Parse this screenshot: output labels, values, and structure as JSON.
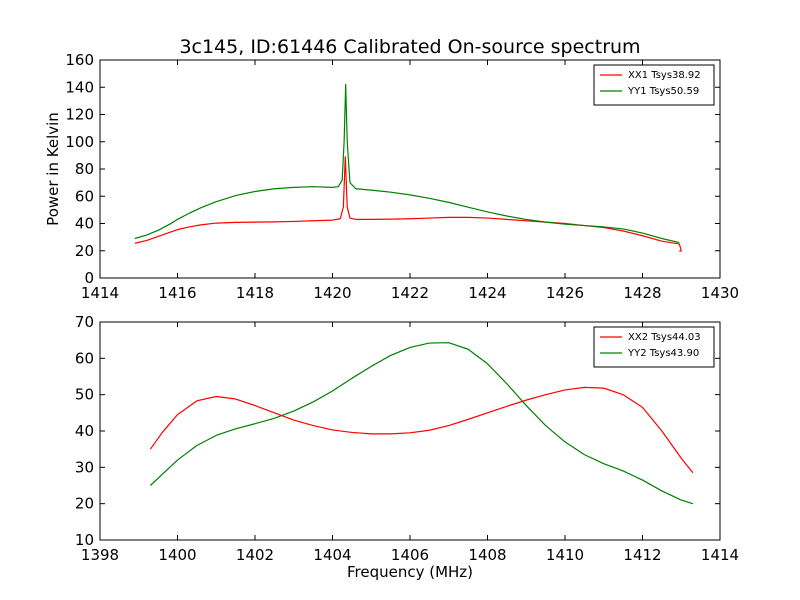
{
  "title": "3c145, ID:61446 Calibrated On-source spectrum",
  "chart_data": [
    {
      "type": "line",
      "panel": "top",
      "xlabel": "",
      "ylabel": "Power in Kelvin",
      "xlim": [
        1414,
        1430
      ],
      "ylim": [
        0,
        160
      ],
      "xticks": [
        1414,
        1416,
        1418,
        1420,
        1422,
        1424,
        1426,
        1428,
        1430
      ],
      "yticks": [
        0,
        20,
        40,
        60,
        80,
        100,
        120,
        140,
        160
      ],
      "grid": false,
      "legend_position": "top-right",
      "series": [
        {
          "name": "XX1 Tsys38.92",
          "color": "#ff0000",
          "points": [
            [
              1414.9,
              25.5
            ],
            [
              1415.2,
              27.5
            ],
            [
              1415.5,
              30.5
            ],
            [
              1415.8,
              33.5
            ],
            [
              1416.0,
              35.5
            ],
            [
              1416.3,
              37.5
            ],
            [
              1416.6,
              39
            ],
            [
              1417.0,
              40.3
            ],
            [
              1417.5,
              40.8
            ],
            [
              1418.0,
              41
            ],
            [
              1418.5,
              41.2
            ],
            [
              1419.0,
              41.5
            ],
            [
              1419.5,
              42
            ],
            [
              1420.0,
              42.5
            ],
            [
              1420.2,
              43.5
            ],
            [
              1420.28,
              52
            ],
            [
              1420.33,
              89
            ],
            [
              1420.38,
              52
            ],
            [
              1420.45,
              44
            ],
            [
              1420.6,
              43
            ],
            [
              1421.0,
              43
            ],
            [
              1421.5,
              43.2
            ],
            [
              1422.0,
              43.5
            ],
            [
              1422.5,
              44
            ],
            [
              1423.0,
              44.5
            ],
            [
              1423.5,
              44.5
            ],
            [
              1424.0,
              44
            ],
            [
              1424.5,
              43
            ],
            [
              1425.0,
              42
            ],
            [
              1425.5,
              41
            ],
            [
              1426.0,
              40
            ],
            [
              1426.5,
              38.5
            ],
            [
              1427.0,
              37
            ],
            [
              1427.5,
              34.5
            ],
            [
              1428.0,
              31
            ],
            [
              1428.5,
              27
            ],
            [
              1428.95,
              25
            ],
            [
              1429.0,
              20
            ],
            [
              1428.95,
              19.5
            ]
          ]
        },
        {
          "name": "YY1 Tsys50.59",
          "color": "#008000",
          "points": [
            [
              1414.9,
              29
            ],
            [
              1415.2,
              31.5
            ],
            [
              1415.5,
              35
            ],
            [
              1415.8,
              39.5
            ],
            [
              1416.0,
              43
            ],
            [
              1416.3,
              47.5
            ],
            [
              1416.6,
              51.5
            ],
            [
              1417.0,
              56
            ],
            [
              1417.5,
              60.5
            ],
            [
              1418.0,
              63.5
            ],
            [
              1418.5,
              65.5
            ],
            [
              1419.0,
              66.5
            ],
            [
              1419.5,
              67
            ],
            [
              1420.0,
              66.5
            ],
            [
              1420.15,
              67
            ],
            [
              1420.25,
              72
            ],
            [
              1420.3,
              100
            ],
            [
              1420.34,
              142
            ],
            [
              1420.38,
              100
            ],
            [
              1420.45,
              70
            ],
            [
              1420.6,
              65.5
            ],
            [
              1421.0,
              64.5
            ],
            [
              1421.5,
              63
            ],
            [
              1422.0,
              61
            ],
            [
              1422.5,
              58.5
            ],
            [
              1423.0,
              55.5
            ],
            [
              1423.5,
              52
            ],
            [
              1424.0,
              48.5
            ],
            [
              1424.5,
              45.5
            ],
            [
              1425.0,
              43
            ],
            [
              1425.5,
              41
            ],
            [
              1426.0,
              39.5
            ],
            [
              1426.5,
              38.5
            ],
            [
              1427.0,
              37.5
            ],
            [
              1427.5,
              36
            ],
            [
              1428.0,
              33
            ],
            [
              1428.5,
              29
            ],
            [
              1428.95,
              26
            ]
          ]
        }
      ]
    },
    {
      "type": "line",
      "panel": "bottom",
      "xlabel": "Frequency (MHz)",
      "ylabel": "",
      "xlim": [
        1398,
        1414
      ],
      "ylim": [
        10,
        70
      ],
      "xticks": [
        1398,
        1400,
        1402,
        1404,
        1406,
        1408,
        1410,
        1412,
        1414
      ],
      "yticks": [
        10,
        20,
        30,
        40,
        50,
        60,
        70
      ],
      "grid": false,
      "legend_position": "top-right",
      "series": [
        {
          "name": "XX2 Tsys44.03",
          "color": "#ff0000",
          "points": [
            [
              1399.3,
              35
            ],
            [
              1399.6,
              39.5
            ],
            [
              1400.0,
              44.5
            ],
            [
              1400.5,
              48.3
            ],
            [
              1401.0,
              49.5
            ],
            [
              1401.5,
              48.8
            ],
            [
              1402.0,
              47
            ],
            [
              1402.5,
              45
            ],
            [
              1403.0,
              43
            ],
            [
              1403.5,
              41.5
            ],
            [
              1404.0,
              40.3
            ],
            [
              1404.5,
              39.6
            ],
            [
              1405.0,
              39.2
            ],
            [
              1405.5,
              39.2
            ],
            [
              1406.0,
              39.5
            ],
            [
              1406.5,
              40.2
            ],
            [
              1407.0,
              41.5
            ],
            [
              1407.5,
              43.2
            ],
            [
              1408.0,
              45
            ],
            [
              1408.5,
              46.8
            ],
            [
              1409.0,
              48.5
            ],
            [
              1409.5,
              50
            ],
            [
              1410.0,
              51.3
            ],
            [
              1410.5,
              52
            ],
            [
              1411.0,
              51.8
            ],
            [
              1411.5,
              50
            ],
            [
              1412.0,
              46.5
            ],
            [
              1412.5,
              40
            ],
            [
              1413.0,
              32.5
            ],
            [
              1413.3,
              28.5
            ]
          ]
        },
        {
          "name": "YY2 Tsys43.90",
          "color": "#008000",
          "points": [
            [
              1399.3,
              25
            ],
            [
              1399.6,
              28
            ],
            [
              1400.0,
              32
            ],
            [
              1400.5,
              36
            ],
            [
              1401.0,
              38.8
            ],
            [
              1401.5,
              40.6
            ],
            [
              1402.0,
              42
            ],
            [
              1402.5,
              43.5
            ],
            [
              1403.0,
              45.5
            ],
            [
              1403.5,
              48
            ],
            [
              1404.0,
              51
            ],
            [
              1404.5,
              54.5
            ],
            [
              1405.0,
              57.8
            ],
            [
              1405.5,
              60.8
            ],
            [
              1406.0,
              63
            ],
            [
              1406.5,
              64.2
            ],
            [
              1407.0,
              64.3
            ],
            [
              1407.5,
              62.5
            ],
            [
              1408.0,
              58.5
            ],
            [
              1408.5,
              53
            ],
            [
              1409.0,
              47
            ],
            [
              1409.5,
              41.5
            ],
            [
              1410.0,
              37
            ],
            [
              1410.5,
              33.5
            ],
            [
              1411.0,
              31
            ],
            [
              1411.5,
              29
            ],
            [
              1412.0,
              26.5
            ],
            [
              1412.5,
              23.5
            ],
            [
              1413.0,
              21
            ],
            [
              1413.3,
              20
            ]
          ]
        }
      ]
    }
  ]
}
